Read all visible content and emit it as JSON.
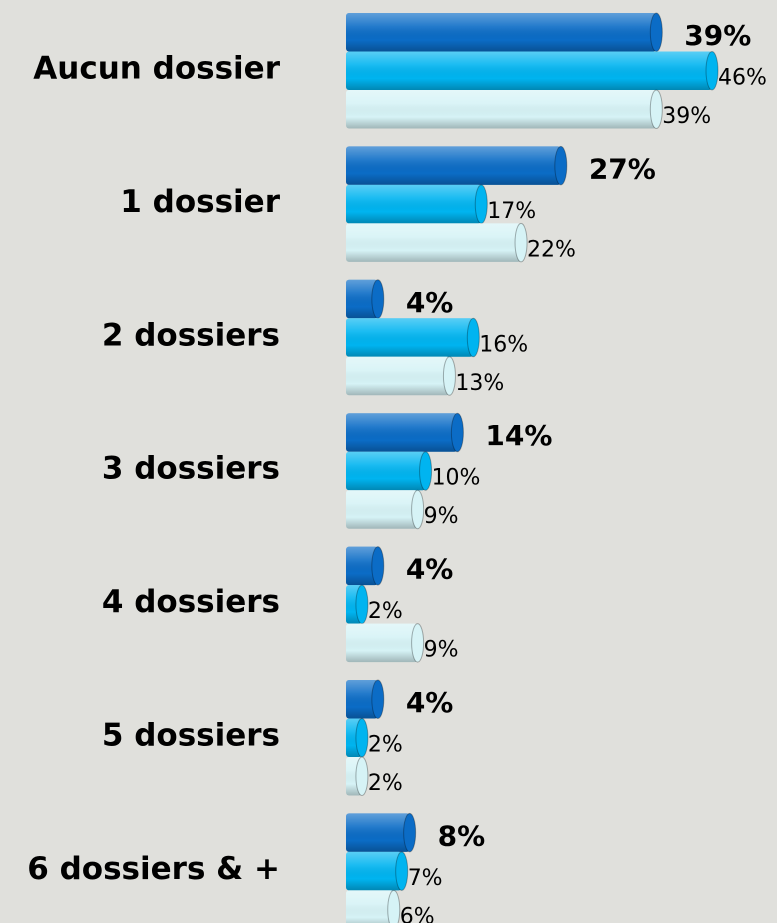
{
  "chart_data": {
    "type": "bar",
    "orientation": "horizontal",
    "categories": [
      "Aucun dossier",
      "1 dossier",
      "2 dossiers",
      "3 dossiers",
      "4 dossiers",
      "5 dossiers",
      "6 dossiers & +"
    ],
    "series": [
      {
        "color": "#0b6cc6",
        "values": [
          39,
          27,
          4,
          14,
          4,
          4,
          8
        ],
        "value_labels": [
          "39%",
          "27%",
          "4%",
          "14%",
          "4%",
          "4%",
          "8%"
        ]
      },
      {
        "color": "#00b4f0",
        "values": [
          46,
          17,
          16,
          10,
          2,
          2,
          7
        ],
        "value_labels": [
          "46%",
          "17%",
          "16%",
          "10%",
          "2%",
          "2%",
          "7%"
        ]
      },
      {
        "color": "#d6f3f6",
        "values": [
          39,
          22,
          13,
          9,
          9,
          2,
          6
        ],
        "value_labels": [
          "39%",
          "22%",
          "13%",
          "9%",
          "9%",
          "2%",
          "6%"
        ]
      }
    ]
  }
}
